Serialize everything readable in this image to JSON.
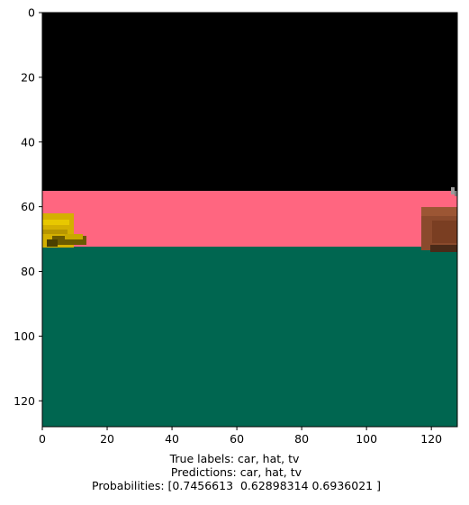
{
  "image": {
    "x_range": [
      0,
      128
    ],
    "y_range": [
      0,
      128
    ],
    "x_ticks": [
      "0",
      "20",
      "40",
      "60",
      "80",
      "100",
      "120"
    ],
    "y_ticks": [
      "0",
      "20",
      "40",
      "60",
      "80",
      "100",
      "120"
    ],
    "colors": {
      "background_top": "#000000",
      "band_middle": "#ff6680",
      "ground": "#006650",
      "hat": "#d4b000",
      "hat_dark": "#6b5a00",
      "tv": "#8a4a2c",
      "tv_dark": "#4a2a18"
    }
  },
  "caption": {
    "true_labels": "True labels: car, hat, tv",
    "predictions": " Predictions: car, hat, tv",
    "probabilities": " Probabilities: [0.7456613  0.62898314 0.6936021 ]"
  }
}
